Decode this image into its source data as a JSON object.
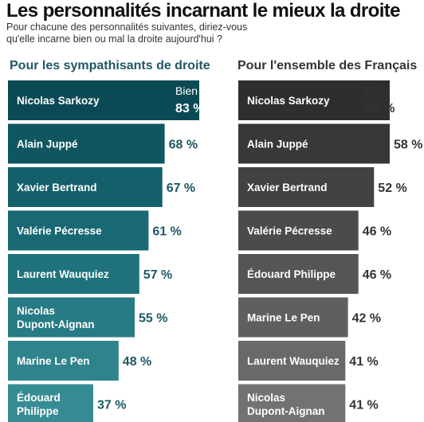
{
  "title": "Les personnalités incarnant le mieux la droite",
  "subtitle_lines": [
    "Pour chacune des personnalités suivantes, diriez-vous",
    "qu'elle incarne bien ou mal la droite aujourd'hui ?"
  ],
  "colors": {
    "left_bars": [
      "#0b4a55",
      "#0f5661",
      "#13606b",
      "#196974",
      "#1f727c",
      "#267b84",
      "#2e838c",
      "#378c94"
    ],
    "right_bars": [
      "#2e2e2e",
      "#383838",
      "#424242",
      "#4b4b4b",
      "#555555",
      "#5f5f5f",
      "#696969",
      "#727272"
    ],
    "left_value": "#1d5864",
    "right_value": "#333333"
  },
  "chart_data": [
    {
      "type": "bar",
      "orientation": "horizontal",
      "title": "Pour les sympathisants de droite",
      "value_header": "Bien",
      "unit": "%",
      "categories": [
        [
          "Nicolas Sarkozy"
        ],
        [
          "Alain Juppé"
        ],
        [
          "Xavier Bertrand"
        ],
        [
          "Valérie Pécresse"
        ],
        [
          "Laurent Wauquiez"
        ],
        [
          "Nicolas",
          "Dupont-Aignan"
        ],
        [
          "Marine Le Pen"
        ],
        [
          "Édouard",
          "Philippe"
        ]
      ],
      "values": [
        83,
        68,
        67,
        61,
        57,
        55,
        48,
        37
      ],
      "value_labels": [
        "83 %",
        "68 %",
        "67 %",
        "61 %",
        "57 %",
        "55 %",
        "48 %",
        "37 %"
      ]
    },
    {
      "type": "bar",
      "orientation": "horizontal",
      "title": "Pour l'ensemble des Français",
      "value_header": "Bien",
      "unit": "%",
      "categories": [
        [
          "Nicolas Sarkozy"
        ],
        [
          "Alain Juppé"
        ],
        [
          "Xavier Bertrand"
        ],
        [
          "Valérie Pécresse"
        ],
        [
          "Édouard Philippe"
        ],
        [
          "Marine Le Pen"
        ],
        [
          "Laurent Wauquiez"
        ],
        [
          "Nicolas",
          "Dupont-Aignan"
        ]
      ],
      "values": [
        58,
        58,
        52,
        46,
        46,
        42,
        41,
        41
      ],
      "value_labels": [
        "58 %",
        "58 %",
        "52 %",
        "46 %",
        "46 %",
        "42 %",
        "41 %",
        "41 %"
      ]
    }
  ]
}
